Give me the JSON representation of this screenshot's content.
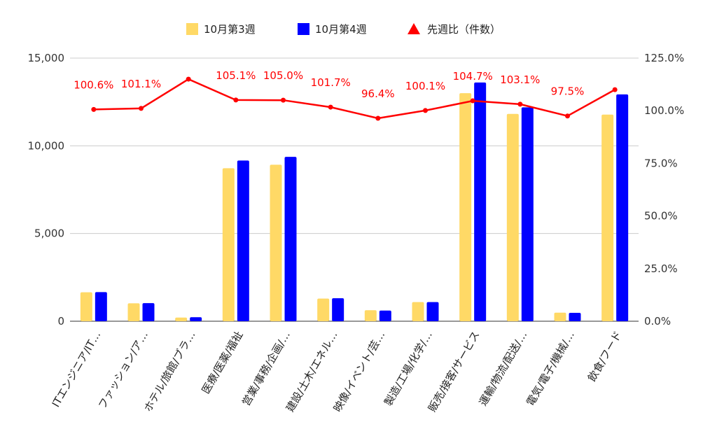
{
  "chart_data": {
    "type": "bar",
    "categories": [
      "ITエンジニア/IT…",
      "ファッション/ア…",
      "ホテル/旅館/ブラ…",
      "医療/医薬/福祉",
      "営業/事務/企画/…",
      "建設/土木/エネル…",
      "映像/イベント/芸…",
      "製造/工場/化学/…",
      "販売/接客/サービス",
      "運輸/物流/配送/…",
      "電気/電子/機械/…",
      "飲食/フード"
    ],
    "series": [
      {
        "name": "10月第3週",
        "type": "bar",
        "axis": "left",
        "color": "#ffd966",
        "values": [
          1650,
          1020,
          210,
          8720,
          8920,
          1290,
          630,
          1090,
          13000,
          11820,
          490,
          11780
        ]
      },
      {
        "name": "10月第4週",
        "type": "bar",
        "axis": "left",
        "color": "#0000ff",
        "values": [
          1660,
          1030,
          230,
          9160,
          9370,
          1310,
          610,
          1090,
          13610,
          12190,
          480,
          12930
        ]
      },
      {
        "name": "先週比（件数）",
        "type": "line",
        "axis": "right",
        "color": "#ff0000",
        "values": [
          100.6,
          101.1,
          115.0,
          105.1,
          105.0,
          101.7,
          96.4,
          100.1,
          104.7,
          103.1,
          97.5,
          110.0
        ],
        "labels": [
          "100.6%",
          "101.1%",
          "",
          "105.1%",
          "105.0%",
          "101.7%",
          "96.4%",
          "100.1%",
          "104.7%",
          "103.1%",
          "97.5%",
          ""
        ]
      }
    ],
    "y_left": {
      "min": 0,
      "max": 15000,
      "ticks": [
        "0",
        "5,000",
        "10,000",
        "15,000"
      ],
      "tick_values": [
        0,
        5000,
        10000,
        15000
      ]
    },
    "y_right": {
      "min": 0,
      "max": 125,
      "ticks": [
        "0.0%",
        "25.0%",
        "50.0%",
        "75.0%",
        "100.0%",
        "125.0%"
      ],
      "tick_values": [
        0,
        25,
        50,
        75,
        100,
        125
      ]
    },
    "grid": true,
    "legend_position": "top",
    "title": "",
    "xlabel": "",
    "ylabel": ""
  }
}
